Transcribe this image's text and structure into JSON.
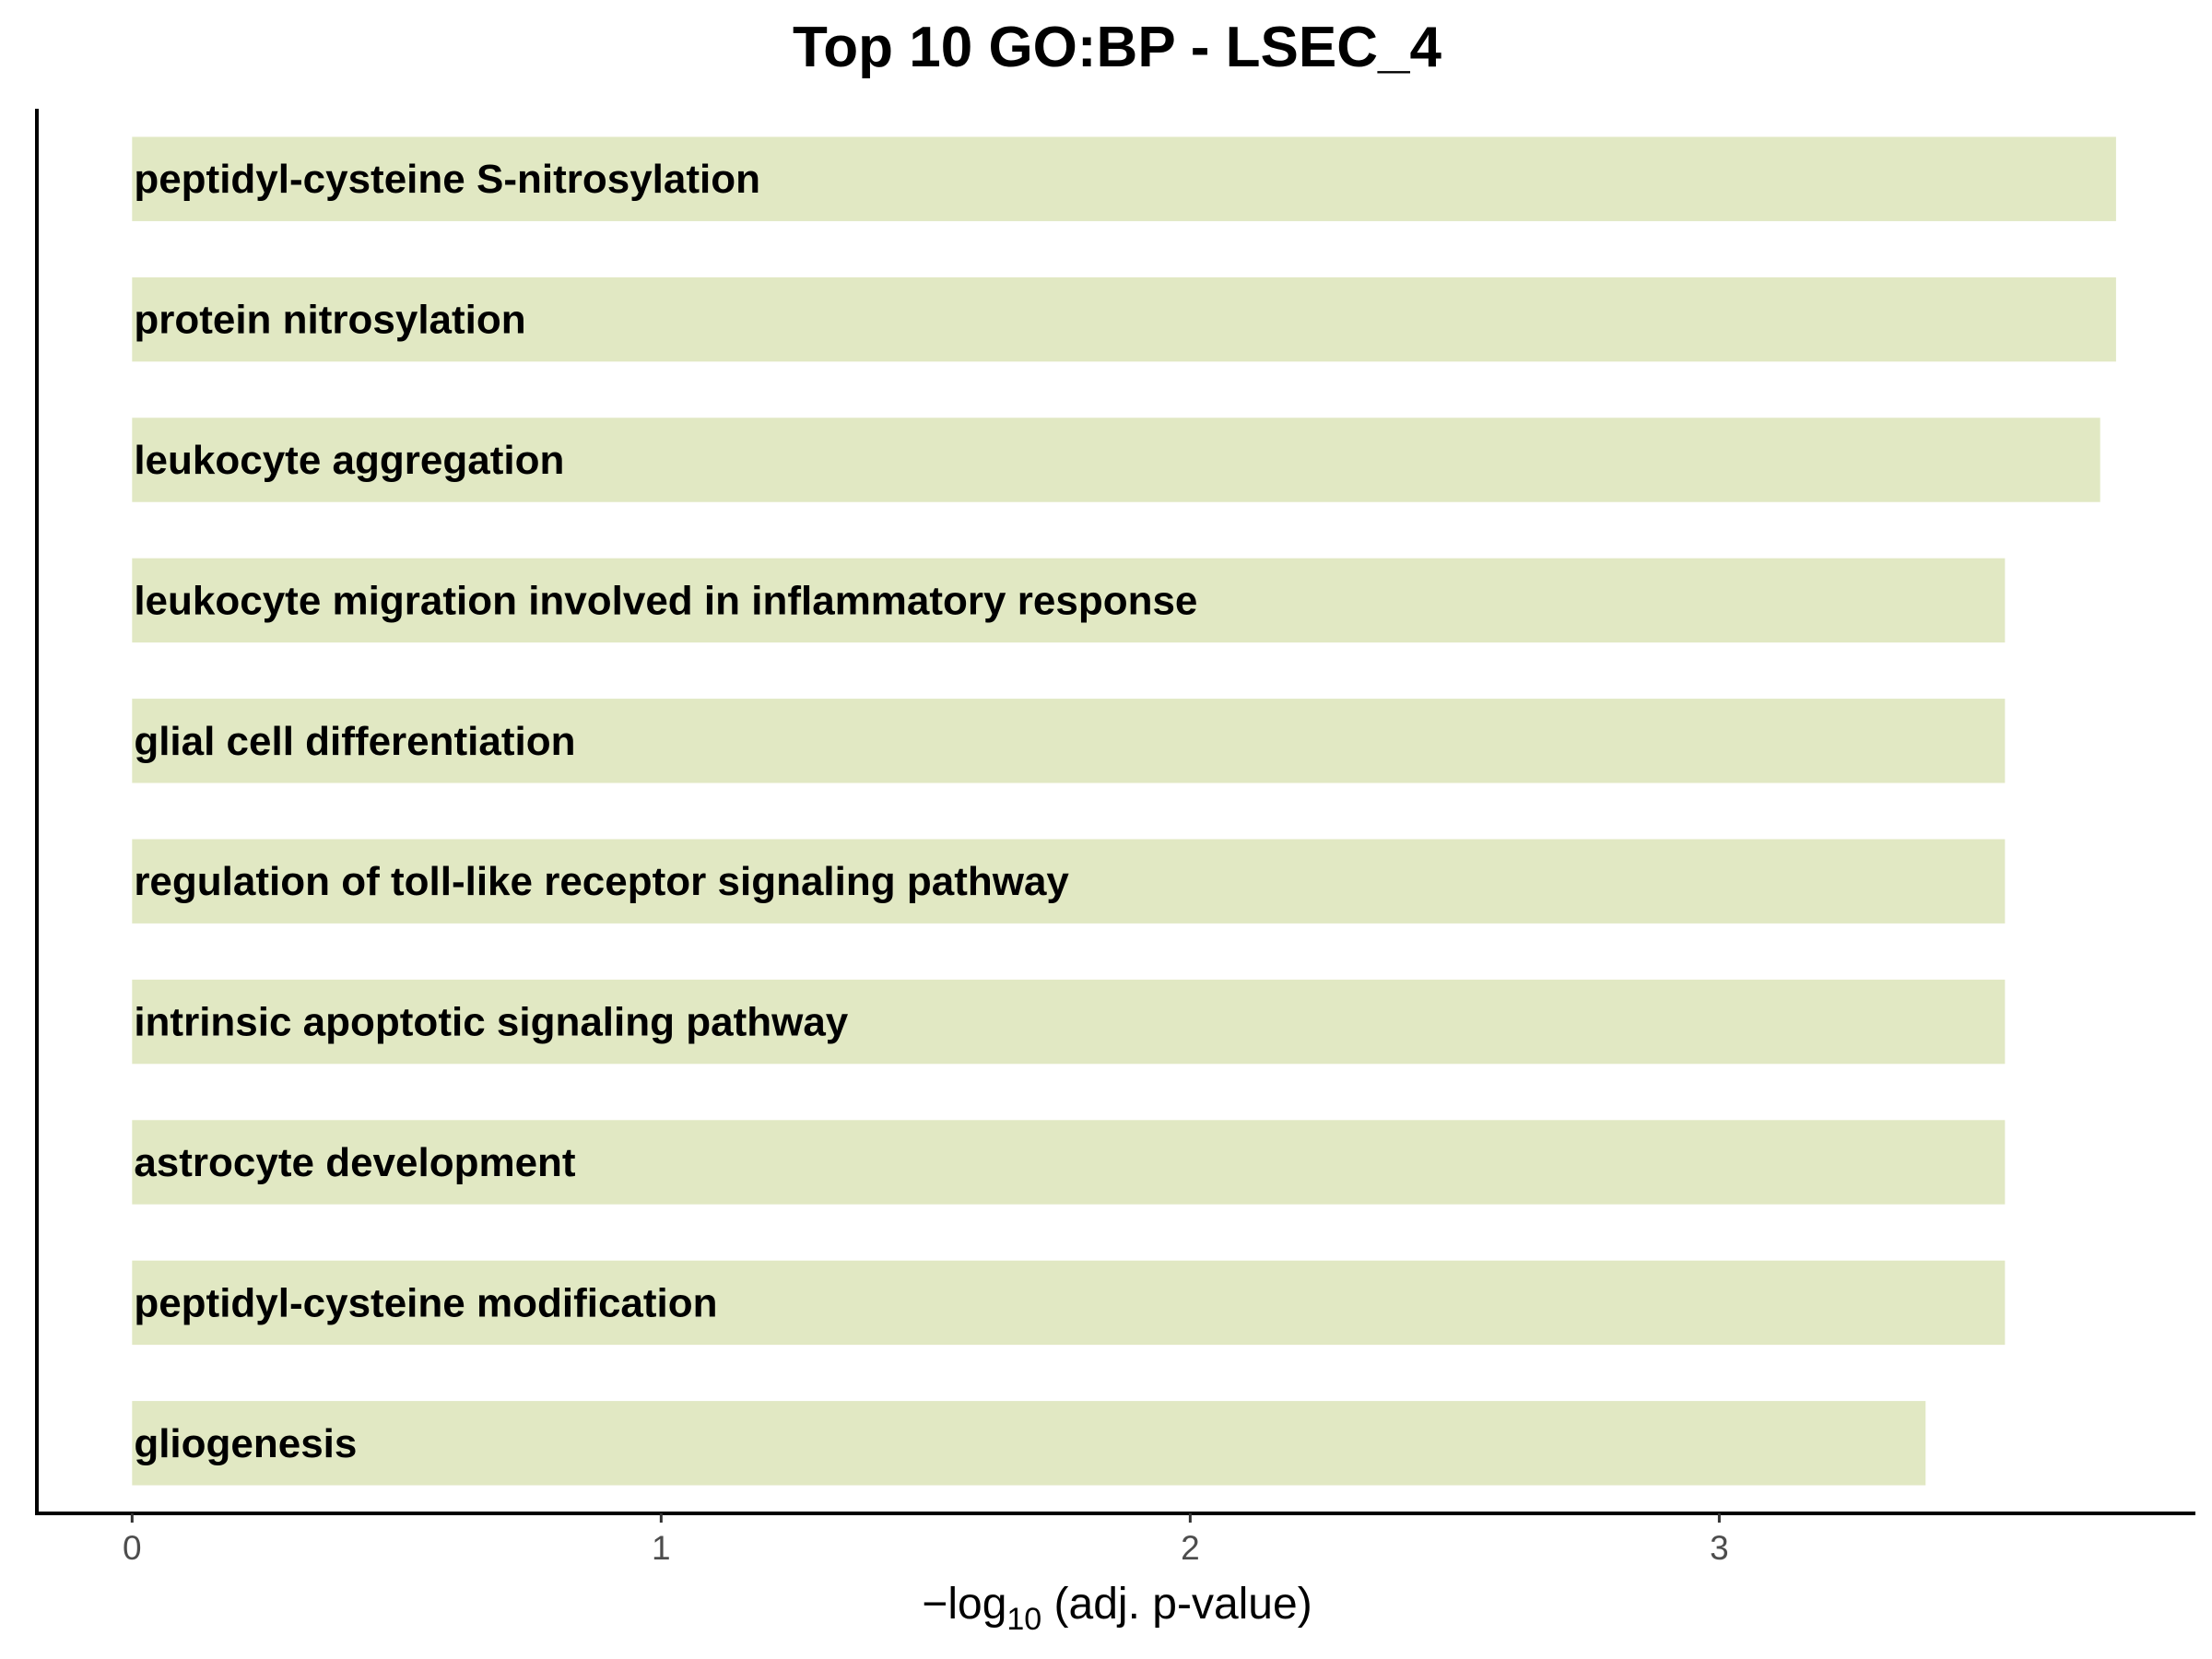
{
  "chart_data": {
    "type": "bar",
    "orientation": "horizontal",
    "title": "Top 10 GO:BP - LSEC_4",
    "xlabel": {
      "prefix": "−log",
      "subscript": "10",
      "suffix": " (adj. p-value)"
    },
    "ylabel": "",
    "xlim": [
      -0.18,
      3.9
    ],
    "x_ticks": [
      0,
      1,
      2,
      3
    ],
    "grid": false,
    "legend": "none",
    "bar_color": "#e1e8c3",
    "categories": [
      "peptidyl-cysteine S-nitrosylation",
      "protein nitrosylation",
      "leukocyte aggregation",
      "leukocyte migration involved in inflammatory response",
      "glial cell differentiation",
      "regulation of toll-like receptor signaling pathway",
      "intrinsic apoptotic signaling pathway",
      "astrocyte development",
      "peptidyl-cysteine modification",
      "gliogenesis"
    ],
    "values": [
      3.75,
      3.75,
      3.72,
      3.54,
      3.54,
      3.54,
      3.54,
      3.54,
      3.54,
      3.39
    ]
  }
}
